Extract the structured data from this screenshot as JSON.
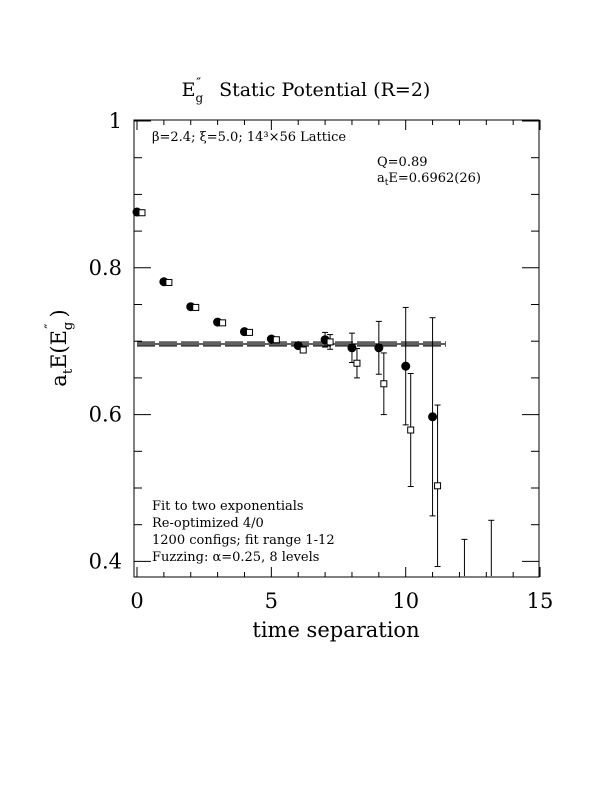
{
  "chart_data": {
    "type": "scatter",
    "title": "E″g  Static Potential (R=2)",
    "title_parts": {
      "sym": "E",
      "prime": "″",
      "sub": "g",
      "rest": "Static Potential (R=2)"
    },
    "xlabel": "time separation",
    "ylabel_parts": {
      "a": "a",
      "t": "t",
      "mid": "E(E",
      "prime": "″",
      "sub": "g",
      "end": ")"
    },
    "xlim": [
      0,
      15
    ],
    "ylim": [
      0.38,
      1.0
    ],
    "x_ticks": [
      0,
      5,
      10,
      15
    ],
    "x_tick_labels": [
      "0",
      "5",
      "10",
      "15"
    ],
    "y_ticks": [
      0.4,
      0.6,
      0.8,
      1.0
    ],
    "y_tick_labels": [
      "0.4",
      "0.6",
      "0.8",
      "1"
    ],
    "lattice_info": "β=2.4; ξ=5.0; 14³×56 Lattice",
    "fit_result": {
      "q": "Q=0.89",
      "energy_a": "a",
      "energy_t": "t",
      "energy_rest": "E=0.6962(26)"
    },
    "notes": [
      "Fit to two exponentials",
      "Re-optimized 4/0",
      "1200 configs; fit range 1-12",
      "Fuzzing: α=0.25, 8 levels"
    ],
    "fit_line": {
      "x_range": [
        0,
        11.5
      ],
      "value": 0.6962,
      "error": 0.0026
    },
    "series": [
      {
        "marker": "filled-circle",
        "points": [
          {
            "x": 0,
            "y": 0.876,
            "err": 0.002
          },
          {
            "x": 1,
            "y": 0.781,
            "err": 0.002
          },
          {
            "x": 2,
            "y": 0.747,
            "err": 0.002
          },
          {
            "x": 3,
            "y": 0.726,
            "err": 0.002
          },
          {
            "x": 4,
            "y": 0.713,
            "err": 0.003
          },
          {
            "x": 5,
            "y": 0.703,
            "err": 0.003
          },
          {
            "x": 6,
            "y": 0.694,
            "err": 0.004
          },
          {
            "x": 7,
            "y": 0.702,
            "err": 0.01
          },
          {
            "x": 8,
            "y": 0.691,
            "err": 0.02
          },
          {
            "x": 9,
            "y": 0.691,
            "err": 0.036
          },
          {
            "x": 10,
            "y": 0.666,
            "err": 0.08
          },
          {
            "x": 11,
            "y": 0.597,
            "err": 0.135
          }
        ]
      },
      {
        "marker": "open-square",
        "points": [
          {
            "x": 0,
            "y": 0.875,
            "err": 0.002
          },
          {
            "x": 1,
            "y": 0.78,
            "err": 0.002
          },
          {
            "x": 2,
            "y": 0.746,
            "err": 0.002
          },
          {
            "x": 3,
            "y": 0.725,
            "err": 0.002
          },
          {
            "x": 4,
            "y": 0.712,
            "err": 0.003
          },
          {
            "x": 5,
            "y": 0.702,
            "err": 0.003
          },
          {
            "x": 6,
            "y": 0.688,
            "err": 0.004
          },
          {
            "x": 7,
            "y": 0.699,
            "err": 0.01
          },
          {
            "x": 8,
            "y": 0.67,
            "err": 0.02
          },
          {
            "x": 9,
            "y": 0.642,
            "err": 0.042
          },
          {
            "x": 10,
            "y": 0.579,
            "err": 0.077
          },
          {
            "x": 11,
            "y": 0.503,
            "err": 0.11
          },
          {
            "x": 12,
            "y": 0.38,
            "err": 0.05
          },
          {
            "x": 13,
            "y": 0.38,
            "err": 0.076
          }
        ]
      }
    ]
  }
}
